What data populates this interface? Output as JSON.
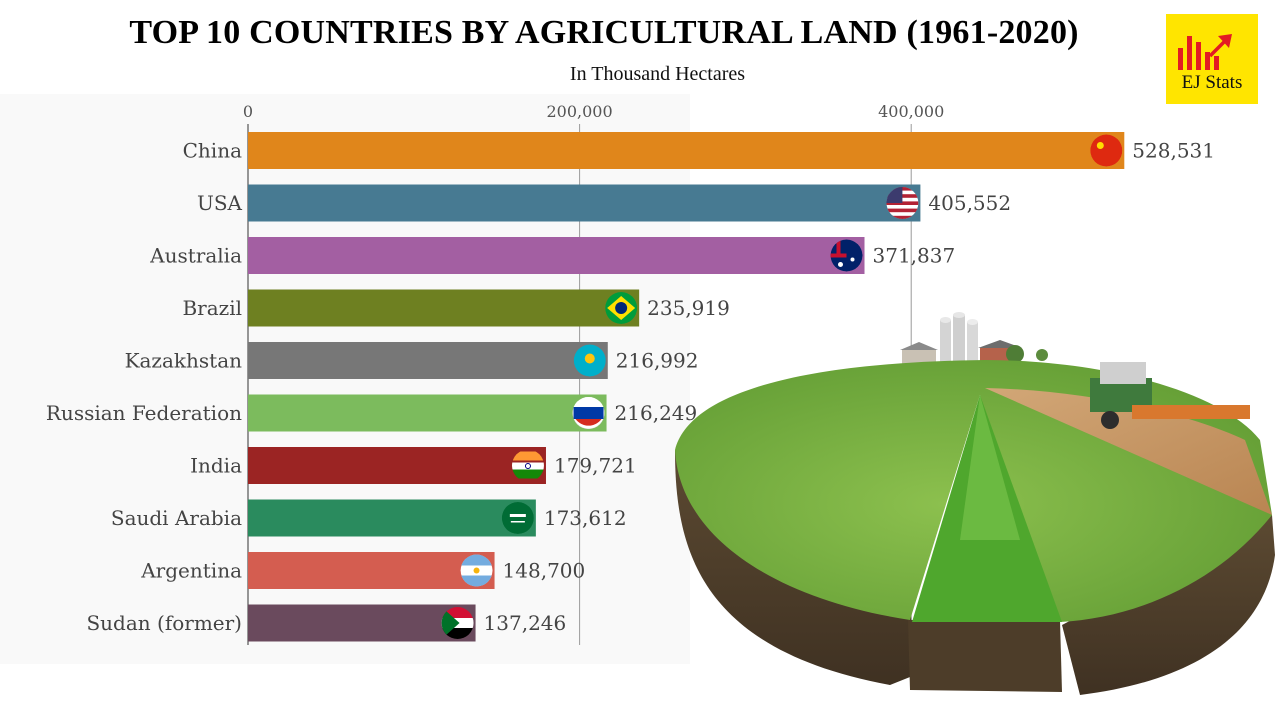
{
  "header": {
    "title": "TOP 10 COUNTRIES BY AGRICULTURAL LAND (1961-2020)",
    "subtitle": "In Thousand Hectares"
  },
  "logo": {
    "text": "EJ Stats",
    "background": "#FFE500",
    "accent": "#E31B23"
  },
  "chart_data": {
    "type": "bar",
    "orientation": "horizontal",
    "title": "TOP 10 COUNTRIES BY AGRICULTURAL LAND (1961-2020)",
    "subtitle": "In Thousand Hectares",
    "categories": [
      "China",
      "USA",
      "Australia",
      "Brazil",
      "Kazakhstan",
      "Russian Federation",
      "India",
      "Saudi Arabia",
      "Argentina",
      "Sudan (former)"
    ],
    "values": [
      528531,
      405552,
      371837,
      235919,
      216992,
      216249,
      179721,
      173612,
      148700,
      137246
    ],
    "value_labels": [
      "528,531",
      "405,552",
      "371,837",
      "235,919",
      "216,992",
      "216,249",
      "179,721",
      "173,612",
      "148,700",
      "137,246"
    ],
    "colors": [
      "#E0861B",
      "#477A92",
      "#A35FA2",
      "#6E8021",
      "#777777",
      "#7CBB5D",
      "#9B2423",
      "#2A8B5E",
      "#D45D50",
      "#6A4A5D"
    ],
    "flags": [
      "china-flag",
      "usa-flag",
      "australia-flag",
      "brazil-flag",
      "kazakhstan-flag",
      "russia-flag",
      "india-flag",
      "saudi-arabia-flag",
      "argentina-flag",
      "sudan-flag"
    ],
    "xaxis": {
      "ticks": [
        0,
        200000,
        400000
      ],
      "tick_labels": [
        "0",
        "200,000",
        "400,000"
      ],
      "position": "top"
    },
    "xlim": [
      0,
      528531
    ],
    "grid": true
  }
}
